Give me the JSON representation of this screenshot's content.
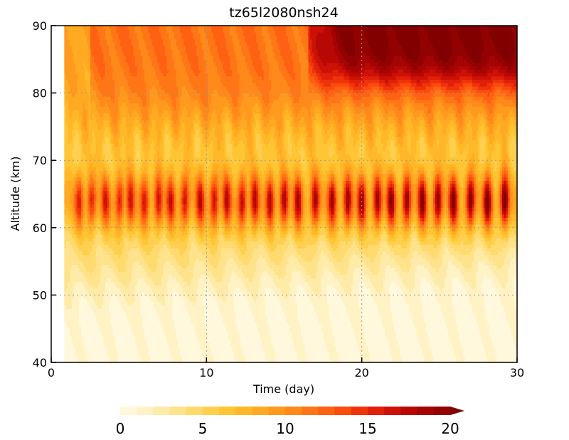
{
  "chart_data": {
    "type": "heatmap",
    "title": "tz65l2080nsh24",
    "xlabel": "Time (day)",
    "ylabel": "Altitude (km)",
    "xlim": [
      0,
      30
    ],
    "ylim": [
      40,
      90
    ],
    "x_ticks": [
      "0",
      "10",
      "20",
      "30"
    ],
    "y_ticks": [
      "40",
      "50",
      "60",
      "70",
      "80",
      "90"
    ],
    "grid": true,
    "data_start_day": 0.8,
    "colorbar": {
      "ticks": [
        "0",
        "5",
        "10",
        "15",
        "20"
      ],
      "min": 0,
      "max": 20,
      "step": 1,
      "extend": "max",
      "colors": [
        "#fff8dc",
        "#fff2c4",
        "#ffeba8",
        "#ffe38c",
        "#ffda6e",
        "#ffd04f",
        "#ffc534",
        "#ffb828",
        "#ffaa22",
        "#ff9a1e",
        "#ff891a",
        "#ff7616",
        "#ff6112",
        "#fb4b0e",
        "#f0340a",
        "#e02008",
        "#cc1106",
        "#b80805",
        "#a50404",
        "#930202",
        "#820000"
      ]
    },
    "features": {
      "band_altitude_km": 64,
      "pulses_day": [
        1.8,
        2.6,
        3.5,
        4.4,
        5.1,
        6.0,
        6.9,
        7.7,
        8.6,
        9.6,
        10.5,
        11.3,
        12.3,
        13.1,
        14.1,
        15.0,
        15.9,
        17.0,
        18.1,
        19.1,
        20.0,
        21.0,
        21.9,
        22.9,
        23.9,
        24.9,
        25.9,
        27.0,
        28.1,
        29.2
      ]
    }
  }
}
